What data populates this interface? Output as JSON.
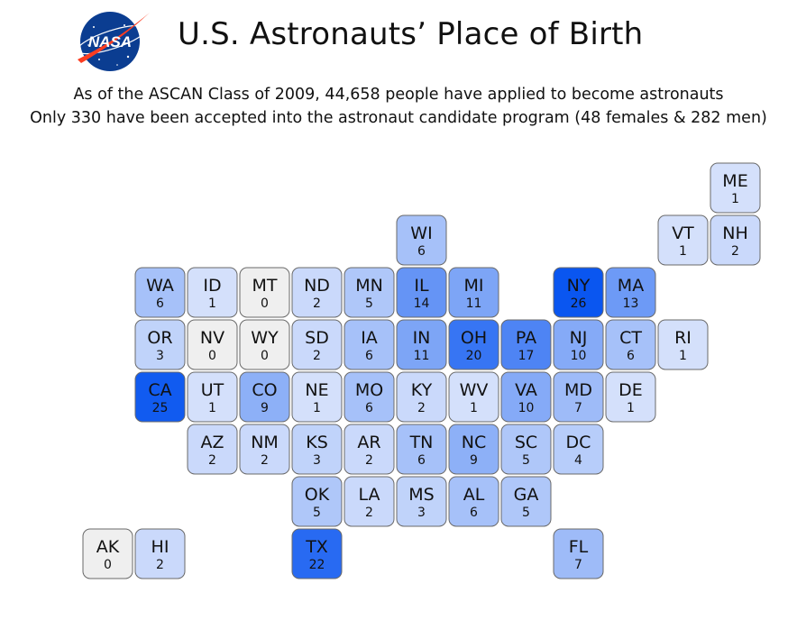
{
  "header": {
    "logo_text": "NASA",
    "title": "U.S. Astronauts’ Place of Birth",
    "subtitle_1": "As of the ASCAN Class of 2009, 44,658 people have applied to become astronauts",
    "subtitle_2": "Only 330 have been accepted into the astronaut candidate program (48 females & 282 men)"
  },
  "colors": {
    "scale_zero": "#efefef",
    "scale_low": "#dfe8fc",
    "scale_high": "#0a56f0",
    "logo_blue": "#0b3d91",
    "logo_red": "#fc3d21"
  },
  "chart_data": {
    "type": "heatmap",
    "title": "U.S. Astronauts’ Place of Birth",
    "value_range": [
      0,
      26
    ],
    "tiles": [
      {
        "state": "ME",
        "value": 1,
        "row": 0,
        "col": 11
      },
      {
        "state": "WI",
        "value": 6,
        "row": 1,
        "col": 5
      },
      {
        "state": "VT",
        "value": 1,
        "row": 1,
        "col": 10
      },
      {
        "state": "NH",
        "value": 2,
        "row": 1,
        "col": 11
      },
      {
        "state": "WA",
        "value": 6,
        "row": 2,
        "col": 0
      },
      {
        "state": "ID",
        "value": 1,
        "row": 2,
        "col": 1
      },
      {
        "state": "MT",
        "value": 0,
        "row": 2,
        "col": 2
      },
      {
        "state": "ND",
        "value": 2,
        "row": 2,
        "col": 3
      },
      {
        "state": "MN",
        "value": 5,
        "row": 2,
        "col": 4
      },
      {
        "state": "IL",
        "value": 14,
        "row": 2,
        "col": 5
      },
      {
        "state": "MI",
        "value": 11,
        "row": 2,
        "col": 6
      },
      {
        "state": "NY",
        "value": 26,
        "row": 2,
        "col": 8
      },
      {
        "state": "MA",
        "value": 13,
        "row": 2,
        "col": 9
      },
      {
        "state": "OR",
        "value": 3,
        "row": 3,
        "col": 0
      },
      {
        "state": "NV",
        "value": 0,
        "row": 3,
        "col": 1
      },
      {
        "state": "WY",
        "value": 0,
        "row": 3,
        "col": 2
      },
      {
        "state": "SD",
        "value": 2,
        "row": 3,
        "col": 3
      },
      {
        "state": "IA",
        "value": 6,
        "row": 3,
        "col": 4
      },
      {
        "state": "IN",
        "value": 11,
        "row": 3,
        "col": 5
      },
      {
        "state": "OH",
        "value": 20,
        "row": 3,
        "col": 6
      },
      {
        "state": "PA",
        "value": 17,
        "row": 3,
        "col": 7
      },
      {
        "state": "NJ",
        "value": 10,
        "row": 3,
        "col": 8
      },
      {
        "state": "CT",
        "value": 6,
        "row": 3,
        "col": 9
      },
      {
        "state": "RI",
        "value": 1,
        "row": 3,
        "col": 10
      },
      {
        "state": "CA",
        "value": 25,
        "row": 4,
        "col": 0
      },
      {
        "state": "UT",
        "value": 1,
        "row": 4,
        "col": 1
      },
      {
        "state": "CO",
        "value": 9,
        "row": 4,
        "col": 2
      },
      {
        "state": "NE",
        "value": 1,
        "row": 4,
        "col": 3
      },
      {
        "state": "MO",
        "value": 6,
        "row": 4,
        "col": 4
      },
      {
        "state": "KY",
        "value": 2,
        "row": 4,
        "col": 5
      },
      {
        "state": "WV",
        "value": 1,
        "row": 4,
        "col": 6
      },
      {
        "state": "VA",
        "value": 10,
        "row": 4,
        "col": 7
      },
      {
        "state": "MD",
        "value": 7,
        "row": 4,
        "col": 8
      },
      {
        "state": "DE",
        "value": 1,
        "row": 4,
        "col": 9
      },
      {
        "state": "AZ",
        "value": 2,
        "row": 5,
        "col": 1
      },
      {
        "state": "NM",
        "value": 2,
        "row": 5,
        "col": 2
      },
      {
        "state": "KS",
        "value": 3,
        "row": 5,
        "col": 3
      },
      {
        "state": "AR",
        "value": 2,
        "row": 5,
        "col": 4
      },
      {
        "state": "TN",
        "value": 6,
        "row": 5,
        "col": 5
      },
      {
        "state": "NC",
        "value": 9,
        "row": 5,
        "col": 6
      },
      {
        "state": "SC",
        "value": 5,
        "row": 5,
        "col": 7
      },
      {
        "state": "DC",
        "value": 4,
        "row": 5,
        "col": 8
      },
      {
        "state": "OK",
        "value": 5,
        "row": 6,
        "col": 3
      },
      {
        "state": "LA",
        "value": 2,
        "row": 6,
        "col": 4
      },
      {
        "state": "MS",
        "value": 3,
        "row": 6,
        "col": 5
      },
      {
        "state": "AL",
        "value": 6,
        "row": 6,
        "col": 6
      },
      {
        "state": "GA",
        "value": 5,
        "row": 6,
        "col": 7
      },
      {
        "state": "AK",
        "value": 0,
        "row": 7,
        "col": -1
      },
      {
        "state": "HI",
        "value": 2,
        "row": 7,
        "col": 0
      },
      {
        "state": "TX",
        "value": 22,
        "row": 7,
        "col": 3
      },
      {
        "state": "FL",
        "value": 7,
        "row": 7,
        "col": 8
      }
    ]
  }
}
